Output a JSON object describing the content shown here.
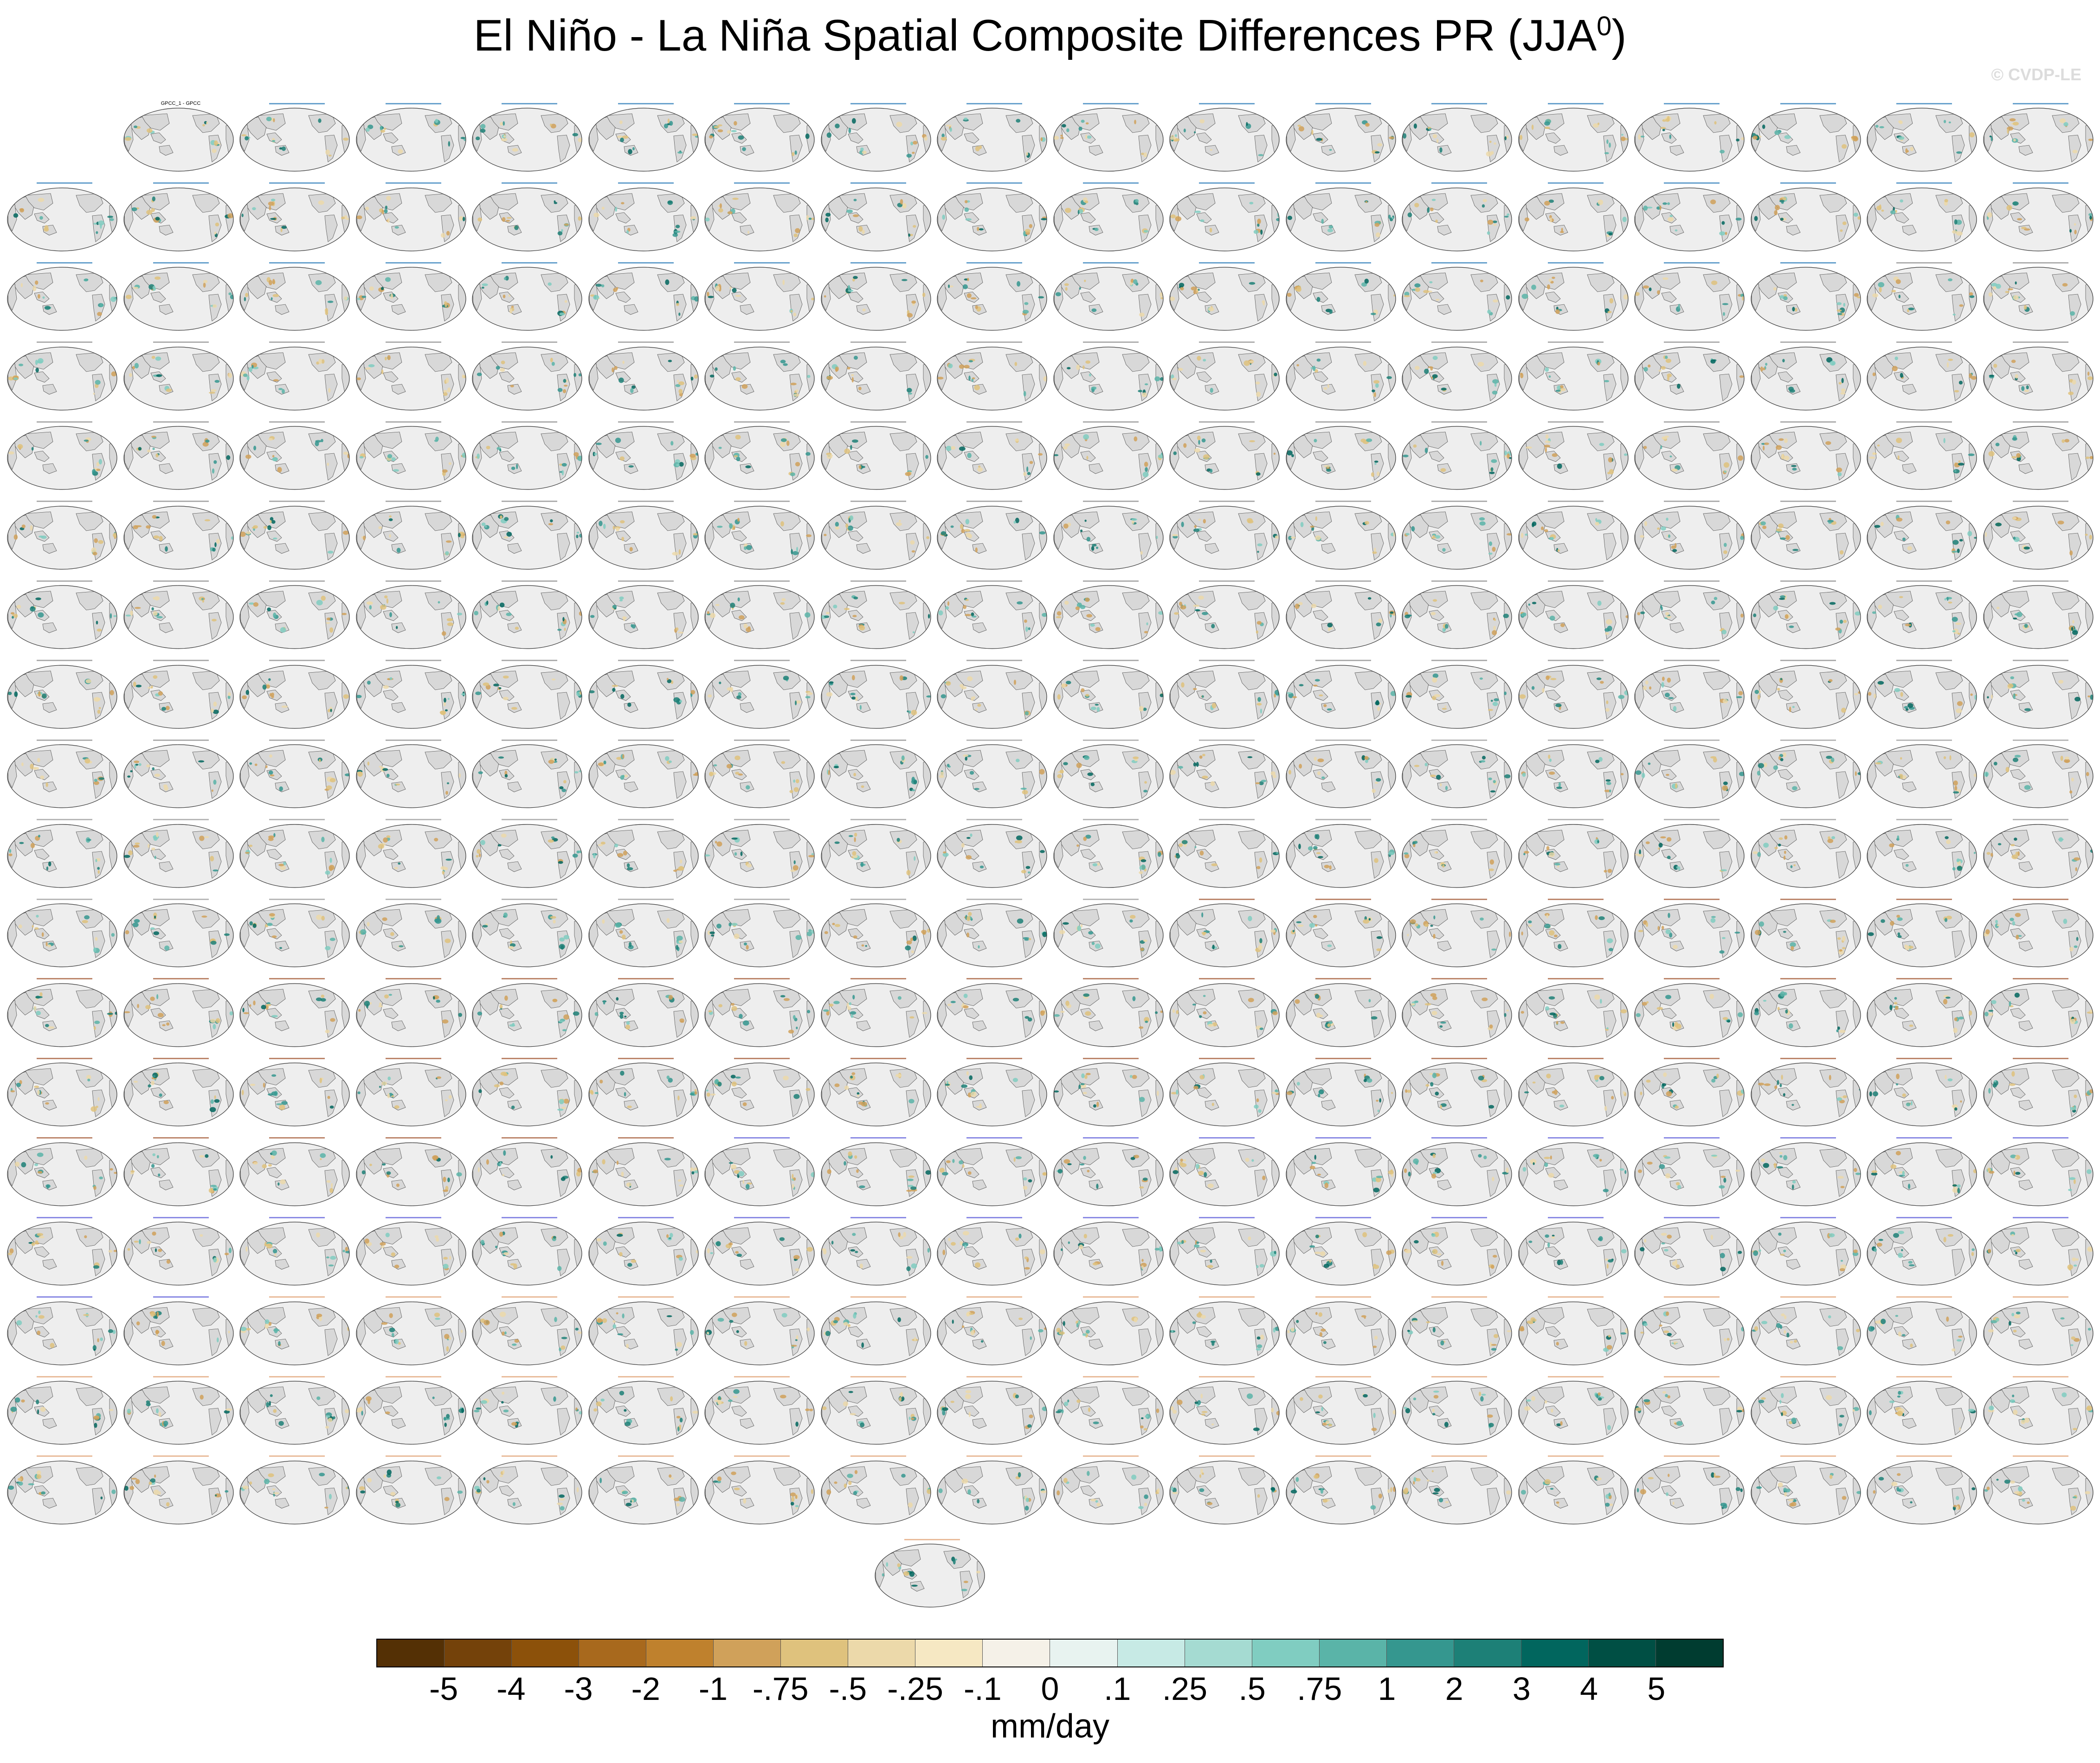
{
  "title": {
    "main": "El Niño - La Niña Spatial Composite Differences PR (JJA",
    "superscript": "0",
    "close": ")"
  },
  "watermark": "© CVDP-LE",
  "panels": {
    "obs_label": "GPCC_1 - GPCC",
    "rows": 18,
    "cols": 18,
    "total_model_panels": 289,
    "group_colors": {
      "obs": "#000000",
      "CanESM5": "#2a7ab8",
      "CESM2-LENS": "#8c8c8c",
      "CNRM-CM6-1": "#9a9a9a",
      "GISS-E2-1-G": "#a0522d",
      "IPSL-CM6A-LR": "#5a5ad8",
      "MIROC6": "#e0a070"
    },
    "land_color": "#e6e6e6",
    "ocean_color": "#ffffff"
  },
  "colorbar": {
    "colors": [
      "#543005",
      "#74420a",
      "#8c510a",
      "#a8691d",
      "#bf812d",
      "#d0a15a",
      "#dfc27d",
      "#ecd9aa",
      "#f6e8c3",
      "#f5f1e8",
      "#e8f3f0",
      "#c7eae5",
      "#a5dbd2",
      "#80cdc1",
      "#5ab4a8",
      "#35978f",
      "#1d8077",
      "#01665e",
      "#004f44",
      "#003c30"
    ],
    "labels": [
      "-5",
      "-4",
      "-3",
      "-2",
      "-1",
      "-.75",
      "-.5",
      "-.25",
      "-.1",
      "0",
      ".1",
      ".25",
      ".5",
      ".75",
      "1",
      "2",
      "3",
      "4",
      "5"
    ],
    "units": "mm/day"
  }
}
